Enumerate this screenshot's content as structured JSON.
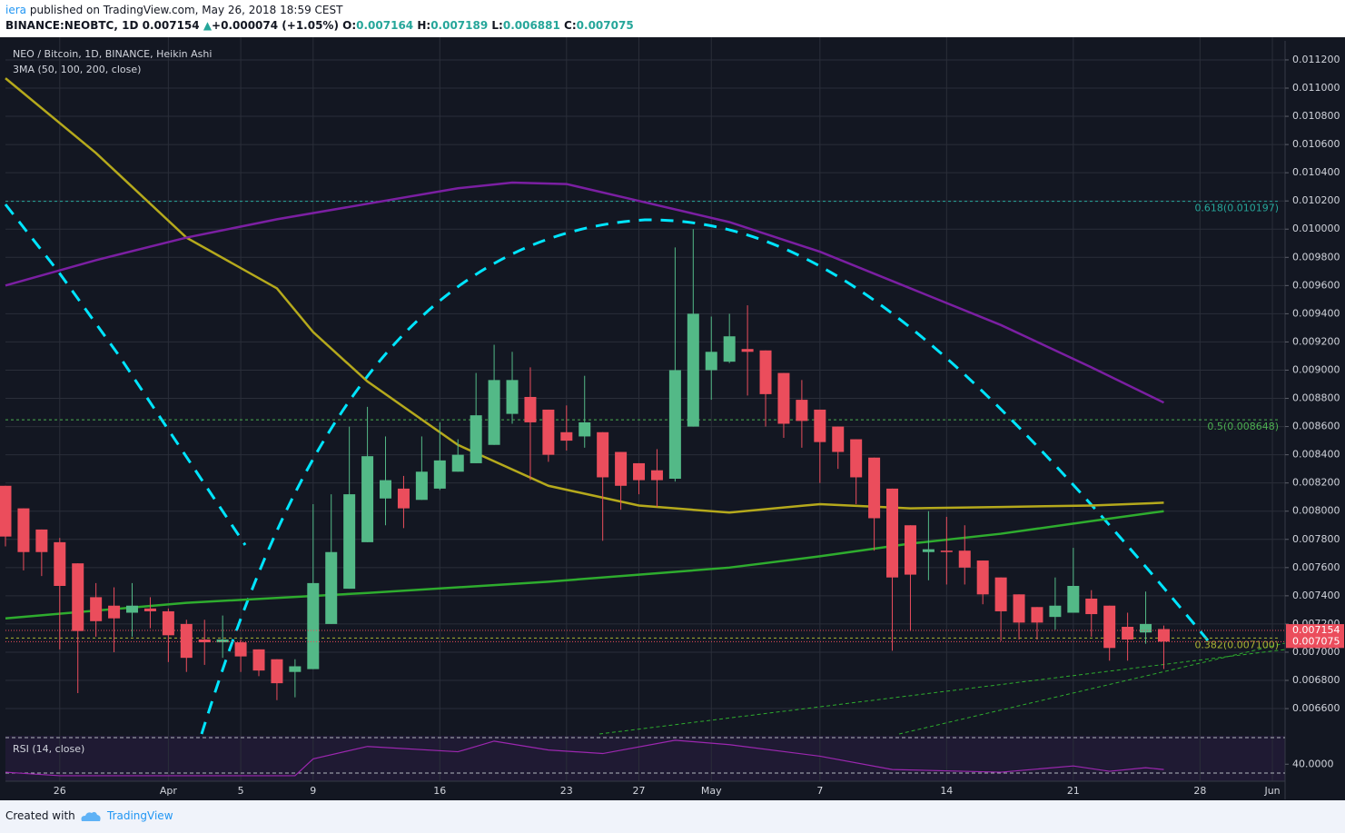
{
  "header": {
    "author": "iera",
    "published": "published on TradingView.com, May 26, 2018 18:59 CEST",
    "symbol": "BINANCE:NEOBTC, 1D",
    "last": "0.007154",
    "arrow": "▲",
    "change": "+0.000074 (+1.05%)",
    "o_label": "O:",
    "o": "0.007164",
    "h_label": "H:",
    "h": "0.007189",
    "l_label": "L:",
    "l": "0.006881",
    "c_label": "C:",
    "c": "0.007075"
  },
  "footer": {
    "created": "Created with",
    "brand": "TradingView"
  },
  "chart_data": {
    "type": "candlestick",
    "title": "NEO / Bitcoin, 1D, BINANCE, Heikin Ashi",
    "legend": "3MA (50, 100, 200, close)",
    "up_color": "#53b987",
    "down_color": "#eb4d5c",
    "xlim": [
      0,
      70.7
    ],
    "xticks": [
      {
        "value": 3,
        "label": "26"
      },
      {
        "value": 9,
        "label": "Apr"
      },
      {
        "value": 13,
        "label": "5"
      },
      {
        "value": 17,
        "label": "9"
      },
      {
        "value": 24,
        "label": "16"
      },
      {
        "value": 31,
        "label": "23"
      },
      {
        "value": 35,
        "label": "27"
      },
      {
        "value": 39,
        "label": "May"
      },
      {
        "value": 45,
        "label": "7"
      },
      {
        "value": 52,
        "label": "14"
      },
      {
        "value": 59,
        "label": "21"
      },
      {
        "value": 66,
        "label": "28"
      },
      {
        "value": 70,
        "label": "Jun"
      }
    ],
    "ylim": [
      0.00642,
      0.011335
    ],
    "yticks": [
      {
        "value": 0.0112,
        "label": "0.011200"
      },
      {
        "value": 0.011,
        "label": "0.011000"
      },
      {
        "value": 0.0108,
        "label": "0.010800"
      },
      {
        "value": 0.0106,
        "label": "0.010600"
      },
      {
        "value": 0.0104,
        "label": "0.010400"
      },
      {
        "value": 0.0102,
        "label": "0.010200"
      },
      {
        "value": 0.01,
        "label": "0.010000"
      },
      {
        "value": 0.0098,
        "label": "0.009800"
      },
      {
        "value": 0.0096,
        "label": "0.009600"
      },
      {
        "value": 0.0094,
        "label": "0.009400"
      },
      {
        "value": 0.0092,
        "label": "0.009200"
      },
      {
        "value": 0.009,
        "label": "0.009000"
      },
      {
        "value": 0.0088,
        "label": "0.008800"
      },
      {
        "value": 0.0086,
        "label": "0.008600"
      },
      {
        "value": 0.0084,
        "label": "0.008400"
      },
      {
        "value": 0.0082,
        "label": "0.008200"
      },
      {
        "value": 0.008,
        "label": "0.008000"
      },
      {
        "value": 0.0078,
        "label": "0.007800"
      },
      {
        "value": 0.0076,
        "label": "0.007600"
      },
      {
        "value": 0.0074,
        "label": "0.007400"
      },
      {
        "value": 0.0072,
        "label": "0.007200"
      },
      {
        "value": 0.007,
        "label": "0.007000"
      },
      {
        "value": 0.0068,
        "label": "0.006800"
      },
      {
        "value": 0.0066,
        "label": "0.006600"
      }
    ],
    "grid": true,
    "open": [
      0.00818,
      0.00802,
      0.00787,
      0.00778,
      0.00763,
      0.00739,
      0.00733,
      0.00728,
      0.00731,
      0.00729,
      0.0072,
      0.00709,
      0.00707,
      0.00707,
      0.00702,
      0.00695,
      0.00686,
      0.00688,
      0.0072,
      0.00745,
      0.00778,
      0.00809,
      0.00816,
      0.00808,
      0.00816,
      0.00828,
      0.00834,
      0.00847,
      0.00869,
      0.00881,
      0.00872,
      0.00856,
      0.00853,
      0.00856,
      0.00842,
      0.00834,
      0.00829,
      0.00823,
      0.0086,
      0.009,
      0.00906,
      0.00915,
      0.00914,
      0.00898,
      0.00879,
      0.00872,
      0.0086,
      0.00851,
      0.00838,
      0.00816,
      0.0079,
      0.00771,
      0.00772,
      0.00772,
      0.00765,
      0.00753,
      0.00741,
      0.00732,
      0.00725,
      0.00728,
      0.00738,
      0.00733,
      0.00718,
      0.00714,
      0.007164
    ],
    "high": [
      0.00818,
      0.00802,
      0.00787,
      0.00781,
      0.00763,
      0.00749,
      0.00746,
      0.00749,
      0.00739,
      0.00731,
      0.00723,
      0.00723,
      0.00726,
      0.00709,
      0.00702,
      0.00695,
      0.00695,
      0.00805,
      0.00812,
      0.0086,
      0.00874,
      0.00853,
      0.00825,
      0.00853,
      0.00863,
      0.00851,
      0.00898,
      0.00918,
      0.00913,
      0.00902,
      0.00872,
      0.00875,
      0.00896,
      0.00856,
      0.00842,
      0.00834,
      0.00844,
      0.00987,
      0.01,
      0.00938,
      0.0094,
      0.00946,
      0.00914,
      0.00898,
      0.00893,
      0.00872,
      0.0086,
      0.00851,
      0.00838,
      0.00816,
      0.0079,
      0.008,
      0.00796,
      0.0079,
      0.00765,
      0.00753,
      0.00741,
      0.00732,
      0.00753,
      0.00774,
      0.00744,
      0.00733,
      0.00728,
      0.00743,
      0.007189
    ],
    "low": [
      0.00775,
      0.00758,
      0.00754,
      0.00702,
      0.00671,
      0.00711,
      0.007,
      0.00711,
      0.00717,
      0.00693,
      0.00686,
      0.00691,
      0.00696,
      0.00686,
      0.00683,
      0.00666,
      0.00668,
      0.00688,
      0.0072,
      0.00745,
      0.00778,
      0.0079,
      0.00788,
      0.00808,
      0.00815,
      0.00828,
      0.00834,
      0.00847,
      0.00862,
      0.00822,
      0.00835,
      0.00843,
      0.00845,
      0.00779,
      0.00801,
      0.00812,
      0.00803,
      0.00821,
      0.0086,
      0.00879,
      0.00905,
      0.00882,
      0.0086,
      0.00852,
      0.00845,
      0.0082,
      0.0083,
      0.00805,
      0.00772,
      0.00701,
      0.00715,
      0.00751,
      0.00748,
      0.00748,
      0.00734,
      0.00708,
      0.00709,
      0.00709,
      0.00716,
      0.00728,
      0.00711,
      0.00694,
      0.00694,
      0.00706,
      0.006881
    ],
    "close": [
      0.00782,
      0.00771,
      0.00771,
      0.00747,
      0.00715,
      0.00722,
      0.00724,
      0.00733,
      0.00729,
      0.00712,
      0.00696,
      0.00707,
      0.00709,
      0.00697,
      0.00687,
      0.00678,
      0.0069,
      0.00749,
      0.00771,
      0.00812,
      0.00839,
      0.00822,
      0.00802,
      0.00828,
      0.00836,
      0.0084,
      0.00868,
      0.00893,
      0.00893,
      0.00863,
      0.0084,
      0.0085,
      0.00863,
      0.00824,
      0.00818,
      0.00822,
      0.00822,
      0.009,
      0.0094,
      0.00913,
      0.00924,
      0.00913,
      0.00883,
      0.00862,
      0.00864,
      0.00849,
      0.00842,
      0.00824,
      0.00795,
      0.00753,
      0.00755,
      0.00773,
      0.00771,
      0.0076,
      0.00741,
      0.00729,
      0.00721,
      0.00721,
      0.00733,
      0.00747,
      0.00727,
      0.00703,
      0.00709,
      0.0072,
      0.007075
    ],
    "ma_series": [
      {
        "color": "#b5a91c",
        "x": [
          0,
          5,
          10,
          15,
          17,
          20,
          25,
          30,
          35,
          40,
          45,
          50,
          55,
          60,
          64
        ],
        "values": [
          0.01107,
          0.01054,
          0.00994,
          0.00958,
          0.00927,
          0.00892,
          0.00847,
          0.00818,
          0.00804,
          0.00799,
          0.00805,
          0.00802,
          0.00803,
          0.00804,
          0.00806
        ]
      },
      {
        "color": "#2eac2e",
        "x": [
          0,
          10,
          20,
          30,
          35,
          40,
          45,
          50,
          55,
          60,
          64
        ],
        "values": [
          0.00724,
          0.00735,
          0.00742,
          0.0075,
          0.00755,
          0.0076,
          0.00768,
          0.00777,
          0.00784,
          0.00793,
          0.008
        ]
      },
      {
        "color": "#7b1fa2",
        "x": [
          0,
          5,
          10,
          15,
          20,
          25,
          28,
          31,
          35,
          40,
          45,
          50,
          55,
          60,
          64
        ],
        "values": [
          0.0096,
          0.00978,
          0.00994,
          0.01007,
          0.01018,
          0.01029,
          0.01033,
          0.01032,
          0.0102,
          0.01005,
          0.00984,
          0.00958,
          0.00932,
          0.00902,
          0.00877
        ]
      }
    ],
    "fib_levels": [
      {
        "value": 0.010197,
        "label": "0.618(0.010197)",
        "color": "#26a69a"
      },
      {
        "value": 0.008648,
        "label": "0.5(0.008648)",
        "color": "#4caf50"
      },
      {
        "value": 0.0071,
        "label": "0.382(0.007100)",
        "color": "#a8b432"
      }
    ],
    "price_tags": [
      {
        "value": 0.007154,
        "label": "0.007154",
        "color": "#eb4d5c"
      },
      {
        "value": 0.007075,
        "label": "0.007075",
        "color": "#eb4d5c"
      }
    ],
    "rsi": {
      "title": "RSI (14, close)",
      "color": "#9c27b0",
      "ylim": [
        20.8,
        72
      ],
      "yticks": [
        {
          "value": 40,
          "label": "40.0000"
        }
      ],
      "bands": [
        70,
        30
      ],
      "x": [
        0,
        3,
        10,
        16,
        17,
        20,
        25,
        27,
        30,
        33,
        37,
        40,
        45,
        49,
        55,
        59,
        61,
        63,
        64
      ],
      "values": [
        31,
        27,
        27,
        27,
        46,
        60,
        54,
        66,
        56,
        52,
        67,
        62,
        49,
        34,
        31,
        38,
        32,
        36,
        34
      ]
    }
  }
}
